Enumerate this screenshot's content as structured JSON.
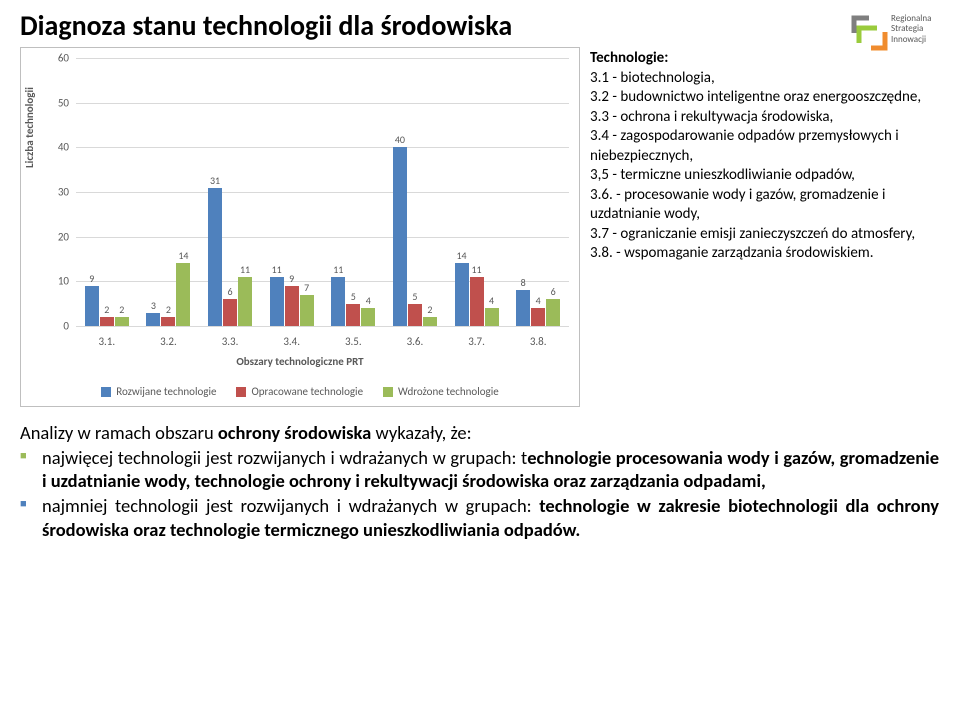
{
  "title": "Diagnoza stanu technologii dla środowiska",
  "logo": {
    "line1": "Regionalna",
    "line2": "Strategia",
    "line3": "Innowacji",
    "colors": {
      "gray": "#7f7f7f",
      "green": "#9acb3c",
      "orange": "#f08c2e"
    }
  },
  "chart": {
    "type": "bar",
    "y_label": "Liczba technologii",
    "x_label": "Obszary technologiczne PRT",
    "ylim": [
      0,
      60
    ],
    "ytick_step": 10,
    "grid_color": "#d9d9d9",
    "border_color": "#bfbfbf",
    "background_color": "#ffffff",
    "tick_fontsize": 11,
    "tick_color": "#595959",
    "categories": [
      "3.1.",
      "3.2.",
      "3.3.",
      "3.4.",
      "3.5.",
      "3.6.",
      "3.7.",
      "3.8."
    ],
    "series": [
      {
        "name": "Rozwijane technologie",
        "color": "#4f81bd",
        "values": [
          9,
          3,
          31,
          11,
          11,
          40,
          14,
          8
        ]
      },
      {
        "name": "Opracowane technologie",
        "color": "#c0504d",
        "values": [
          2,
          2,
          6,
          9,
          5,
          5,
          11,
          4
        ]
      },
      {
        "name": "Wdrożone technologie",
        "color": "#9bbb59",
        "values": [
          2,
          14,
          11,
          7,
          4,
          2,
          4,
          6
        ]
      }
    ]
  },
  "tech_legend": {
    "head": "Technologie:",
    "items": [
      "3.1 - biotechnologia,",
      "3.2 - budownictwo inteligentne oraz energooszczędne,",
      "3.3 - ochrona i rekultywacja środowiska,",
      "3.4 - zagospodarowanie odpadów przemysłowych i niebezpiecznych,",
      "3,5 - termiczne unieszkodliwianie odpadów,",
      "3.6. - procesowanie wody i gazów, gromadzenie i uzdatnianie wody,",
      "3.7 - ograniczanie emisji zanieczyszczeń do atmosfery,",
      "3.8. - wspomaganie zarządzania środowiskiem."
    ]
  },
  "analysis": {
    "lead_pre": "Analizy w ramach obszaru ",
    "lead_bold": "ochrony środowiska",
    "lead_post": " wykazały, że:",
    "bullets": [
      {
        "bullet_color": "#9bbb59",
        "runs": [
          {
            "t": "najwięcej technologii jest rozwijanych i wdrażanych w grupach: t",
            "b": false
          },
          {
            "t": "echnologie procesowania wody i gazów, gromadzenie i uzdatnianie wody, technologie ochrony i rekultywacji środowiska oraz zarządzania odpadami,",
            "b": true
          }
        ]
      },
      {
        "bullet_color": "#4f81bd",
        "runs": [
          {
            "t": "najmniej technologii jest rozwijanych i wdrażanych w grupach: ",
            "b": false
          },
          {
            "t": "technologie w zakresie biotechnologii dla ochrony środowiska oraz technologie termicznego unieszkodliwiania odpadów.",
            "b": true
          }
        ]
      }
    ]
  }
}
